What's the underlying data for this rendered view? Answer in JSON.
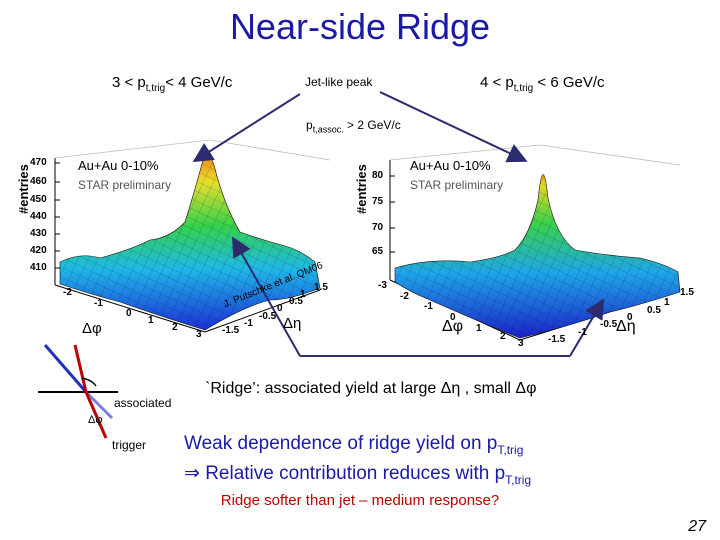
{
  "slide": {
    "title": "Near-side Ridge",
    "page_number": "27"
  },
  "header": {
    "left_prefix": "3 < p",
    "left_sub": "t,trig",
    "left_suffix": "< 4 GeV/c",
    "middle": "Jet-like peak",
    "right_prefix": "4 < p",
    "right_sub": "t,trig",
    "right_suffix": " < 6 GeV/c",
    "assoc_prefix": "p",
    "assoc_sub": "t,assoc.",
    "assoc_suffix": " > 2 GeV/c"
  },
  "left_plot": {
    "system": "Au+Au 0-10%",
    "preliminary": "STAR preliminary",
    "ylabel": "#entries",
    "z_ticks": [
      "470",
      "460",
      "450",
      "440",
      "430",
      "420",
      "410"
    ],
    "dphi_ticks": [
      "-2",
      "-1",
      "0",
      "1",
      "2",
      "3"
    ],
    "deta_ticks": [
      "-1.5",
      "-1",
      "-0.5",
      "0",
      "0.5",
      "1",
      "1.5"
    ],
    "dphi_label": "Δφ",
    "deta_label": "Δη",
    "citation": "J. Putschke et al. QM06"
  },
  "right_plot": {
    "system": "Au+Au 0-10%",
    "preliminary": "STAR preliminary",
    "ylabel": "#entries",
    "z_ticks": [
      "80",
      "75",
      "70",
      "65"
    ],
    "dphi_ticks": [
      "-3",
      "-2",
      "-1",
      "0",
      "1",
      "2",
      "3"
    ],
    "deta_ticks": [
      "-1.5",
      "-1",
      "-0.5",
      "0",
      "0.5",
      "1",
      "1.5"
    ],
    "dphi_label": "Δφ",
    "deta_label": "Δη"
  },
  "diagram": {
    "associated": "associated",
    "dphi": "Δφ",
    "trigger": "trigger"
  },
  "text": {
    "ridge_definition": "`Ridge’: associated yield at large Δη , small Δφ",
    "weak_line1_prefix": "Weak dependence of ridge yield on p",
    "weak_line1_sub": "T,trig",
    "weak_line2_prefix": "⇒ Relative contribution reduces with p",
    "weak_line2_sub": "T,trig",
    "softer": "Ridge softer than jet – medium response?"
  },
  "colors": {
    "title": "#1a1aa6",
    "blue_text": "#1a1aa6",
    "red_text": "#c00000",
    "arrow": "#2b2b6e"
  }
}
